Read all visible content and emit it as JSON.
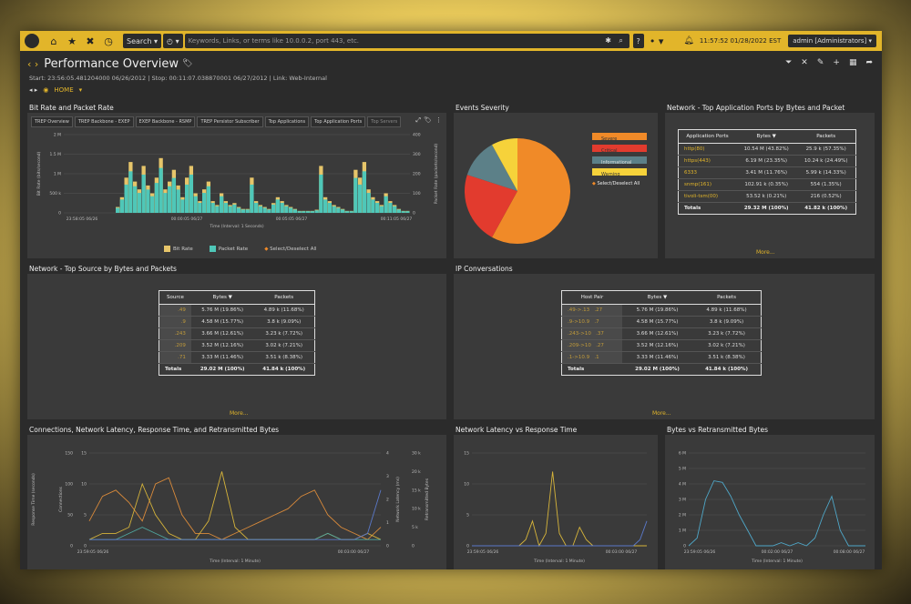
{
  "topbar": {
    "search_label": "Search",
    "search_placeholder": "Keywords, Links, or terms like 10.0.0.2, port 443, etc.",
    "help": "?",
    "clock": "11:57:52 01/28/2022 EST",
    "user": "admin [Administrators]"
  },
  "page": {
    "title": "Performance Overview",
    "subtitle": "Start: 23:56:05.481204000 06/26/2012 | Stop: 00:11:07.038870001 06/27/2012 | Link: Web-Internal",
    "home": "HOME"
  },
  "panels": {
    "bitrate": {
      "title": "Bit Rate and Packet Rate",
      "tabs": [
        "TREP Overview",
        "TREP Backbone - EXEP",
        "EXEP Backbone - RSMP",
        "TREP Persistor Subscriber",
        "Top Applications",
        "Top Application Ports",
        "Top Servers"
      ],
      "yleft_ticks": [
        "2 M",
        "1.5 M",
        "1 M",
        "500 k",
        "0"
      ],
      "yright_ticks": [
        "400",
        "300",
        "200",
        "100",
        "0"
      ],
      "yleft_label": "Bit Rate (bits/second)",
      "yright_label": "Packet Rate (packets/second)",
      "x_ticks": [
        "23:58:05 06/26",
        "00:00:05 06/27",
        "00:05:05 06/27",
        "00:11:05 06/27"
      ],
      "x_label": "Time (Interval: 1 Seconds)",
      "legend": [
        "Bit Rate",
        "Packet Rate",
        "Select/Deselect All"
      ]
    },
    "events": {
      "title": "Events Severity",
      "legend": [
        "Severe",
        "Critical",
        "Informational",
        "Warning",
        "Select/Deselect All"
      ]
    },
    "ports": {
      "title": "Network - Top Application Ports by Bytes and Packet",
      "headers": [
        "Application Ports",
        "Bytes ▼",
        "Packets"
      ],
      "rows": [
        [
          "http(80)",
          "10.54 M (43.82%)",
          "25.9 k (57.35%)"
        ],
        [
          "https(443)",
          "6.19 M (23.35%)",
          "10.24 k (24.49%)"
        ],
        [
          "6333",
          "3.41 M (11.76%)",
          "5.99 k (14.33%)"
        ],
        [
          "snmp(161)",
          "102.91 k (0.35%)",
          "554 (1.35%)"
        ],
        [
          "tivoli-tsm(00)",
          "53.52 k (0.21%)",
          "216 (0.52%)"
        ]
      ],
      "total": [
        "Totals",
        "29.32 M (100%)",
        "41.82 k (100%)"
      ],
      "more": "More..."
    },
    "sources": {
      "title": "Network - Top Source by Bytes and Packets",
      "headers": [
        "Source",
        "Bytes ▼",
        "Packets"
      ],
      "rows": [
        [
          ".49",
          "5.76 M (19.86%)",
          "4.89 k (11.68%)"
        ],
        [
          ".9",
          "4.58 M (15.77%)",
          "3.8 k (9.09%)"
        ],
        [
          ".243",
          "3.66 M (12.61%)",
          "3.23 k (7.72%)"
        ],
        [
          ".209",
          "3.52 M (12.16%)",
          "3.02 k (7.21%)"
        ],
        [
          ".71",
          "3.33 M (11.46%)",
          "3.51 k (8.38%)"
        ]
      ],
      "total": [
        "Totals",
        "29.02 M (100%)",
        "41.84 k (100%)"
      ],
      "more": "More..."
    },
    "conversations": {
      "title": "IP Conversations",
      "headers": [
        "Host Pair",
        "Bytes ▼",
        "Packets"
      ],
      "rows": [
        [
          ".49->.13",
          ".27",
          "5.76 M (19.86%)",
          "4.89 k (11.68%)"
        ],
        [
          ".9->10.9",
          ".7",
          "4.58 M (15.77%)",
          "3.8 k (9.09%)"
        ],
        [
          ".243->10",
          ".37",
          "3.66 M (12.61%)",
          "3.23 k (7.72%)"
        ],
        [
          ".209->10",
          ".27",
          "3.52 M (12.16%)",
          "3.02 k (7.21%)"
        ],
        [
          ".1->10.9",
          ".1",
          "3.33 M (11.46%)",
          "3.51 k (8.38%)"
        ]
      ],
      "total": [
        "Totals",
        "29.02 M (100%)",
        "41.84 k (100%)"
      ],
      "more": "More..."
    },
    "connections": {
      "title": "Connections, Network Latency, Response Time, and Retransmitted Bytes",
      "yleft_ticks": [
        "15",
        "10",
        "5",
        "0"
      ],
      "yleft2_ticks": [
        "150",
        "100",
        "50",
        "0"
      ],
      "yright_ticks": [
        "4",
        "3",
        "2",
        "1",
        "0"
      ],
      "yright2_ticks": [
        "30 k",
        "20 k",
        "15 k",
        "10 k",
        "5 k",
        "0"
      ],
      "yleft_label": "Response Time (seconds)",
      "yleft2_label": "Connections",
      "yright_label": "Network Latency (ms)",
      "yright2_label": "Retransmitted Bytes",
      "x_ticks": [
        "23:59:05 06/26",
        "00:03:00 06/27"
      ],
      "x_label": "Time (Interval: 1 Minute)"
    },
    "latency": {
      "title": "Network Latency vs Response Time",
      "y_ticks": [
        "15",
        "10",
        "5",
        "0"
      ],
      "x_ticks": [
        "23:59:05 06/26",
        "00:03:00 06/27"
      ],
      "x_label": "Time (Interval: 1 Minute)"
    },
    "retrans": {
      "title": "Bytes vs Retransmitted Bytes",
      "y_ticks": [
        "6 M",
        "5 M",
        "4 M",
        "3 M",
        "2 M",
        "1 M",
        "0"
      ],
      "x_ticks": [
        "23:59:05 06/26",
        "00:02:00 06/27",
        "00:08:00 06/27"
      ],
      "x_label": "Time (Interval: 1 Minute)"
    }
  },
  "colors": {
    "accent": "#e2b52a",
    "severe": "#f08a28",
    "critical": "#e23b2e",
    "informational": "#5c8088",
    "warning": "#f6d23a",
    "bitrate": "#e6c56a",
    "packetrate": "#4fc7b8"
  },
  "chart_data": [
    {
      "type": "area",
      "title": "Bit Rate and Packet Rate",
      "xlabel": "Time (Interval: 1 Seconds)",
      "ylabel": "Bit Rate (bits/second)",
      "ylim": [
        0,
        2000000
      ],
      "series": [
        {
          "name": "Bit Rate",
          "values": [
            0,
            0,
            0,
            0,
            0,
            0,
            0,
            0,
            0,
            0,
            0,
            0,
            150000,
            400000,
            900000,
            1300000,
            800000,
            600000,
            1200000,
            700000,
            500000,
            900000,
            1400000,
            600000,
            800000,
            1100000,
            700000,
            400000,
            900000,
            1200000,
            500000,
            300000,
            600000,
            800000,
            300000,
            200000,
            500000,
            300000,
            200000,
            250000,
            150000,
            100000,
            100000,
            900000,
            300000,
            200000,
            150000,
            100000,
            250000,
            400000,
            300000,
            200000,
            150000,
            100000,
            50000,
            50000,
            50000,
            50000,
            80000,
            1200000,
            400000,
            300000,
            200000,
            150000,
            100000,
            50000,
            50000,
            1100000,
            900000,
            1300000,
            600000,
            400000,
            300000,
            200000,
            500000,
            300000,
            200000,
            100000,
            50000,
            50000
          ]
        },
        {
          "name": "Packet Rate",
          "values": [
            0,
            0,
            0,
            0,
            0,
            0,
            0,
            0,
            0,
            0,
            0,
            0,
            30,
            80,
            170,
            250,
            160,
            120,
            230,
            140,
            100,
            180,
            270,
            120,
            160,
            210,
            140,
            80,
            170,
            230,
            100,
            60,
            120,
            160,
            60,
            40,
            100,
            60,
            40,
            50,
            30,
            20,
            20,
            170,
            60,
            40,
            30,
            20,
            50,
            80,
            60,
            40,
            30,
            20,
            10,
            10,
            10,
            10,
            15,
            230,
            80,
            60,
            40,
            30,
            20,
            10,
            10,
            210,
            170,
            250,
            120,
            80,
            60,
            40,
            100,
            60,
            40,
            20,
            10,
            10
          ]
        }
      ]
    },
    {
      "type": "pie",
      "title": "Events Severity",
      "categories": [
        "Severe",
        "Critical",
        "Informational",
        "Warning"
      ],
      "values": [
        58,
        22,
        12,
        8
      ]
    },
    {
      "type": "line",
      "title": "Connections, Network Latency, Response Time, and Retransmitted Bytes",
      "xlabel": "Time (Interval: 1 Minute)",
      "ylim": [
        0,
        15
      ],
      "series": [
        {
          "name": "series-orange",
          "values": [
            4,
            8,
            9,
            7,
            4,
            10,
            11,
            5,
            2,
            2,
            1,
            2,
            3,
            4,
            5,
            6,
            8,
            9,
            5,
            3,
            2,
            1,
            3
          ]
        },
        {
          "name": "series-yellow",
          "values": [
            1,
            2,
            2,
            3,
            10,
            5,
            2,
            1,
            1,
            4,
            12,
            3,
            1,
            1,
            1,
            1,
            1,
            1,
            2,
            1,
            1,
            2,
            1
          ]
        },
        {
          "name": "series-teal",
          "values": [
            1,
            1,
            1,
            2,
            3,
            2,
            1,
            1,
            1,
            1,
            1,
            1,
            1,
            1,
            1,
            1,
            1,
            1,
            2,
            1,
            1,
            1,
            1
          ]
        },
        {
          "name": "series-blue",
          "values": [
            1,
            1,
            1,
            1,
            1,
            1,
            1,
            1,
            1,
            1,
            1,
            1,
            1,
            1,
            1,
            1,
            1,
            1,
            1,
            1,
            1,
            2,
            9
          ]
        }
      ]
    },
    {
      "type": "line",
      "title": "Network Latency vs Response Time",
      "xlabel": "Time (Interval: 1 Minute)",
      "ylim": [
        0,
        15
      ],
      "series": [
        {
          "name": "series-yellow",
          "values": [
            0,
            0,
            0,
            0,
            0,
            0,
            0,
            0,
            1,
            4,
            0,
            2,
            12,
            2,
            0,
            0,
            3,
            1,
            0,
            0,
            0,
            0,
            0,
            0,
            0,
            0,
            0
          ]
        },
        {
          "name": "series-blue",
          "values": [
            0,
            0,
            0,
            0,
            0,
            0,
            0,
            0,
            0,
            0,
            0,
            0,
            0,
            0,
            0,
            0,
            0,
            0,
            0,
            0,
            0,
            0,
            0,
            0,
            0,
            1,
            4
          ]
        }
      ]
    },
    {
      "type": "line",
      "title": "Bytes vs Retransmitted Bytes",
      "xlabel": "Time (Interval: 1 Minute)",
      "ylim": [
        0,
        6000000
      ],
      "series": [
        {
          "name": "series-teal",
          "values": [
            0,
            500000,
            3000000,
            4200000,
            4100000,
            3200000,
            2000000,
            1000000,
            0,
            0,
            0,
            200000,
            0,
            200000,
            0,
            500000,
            2000000,
            3200000,
            1000000,
            0,
            0,
            0
          ]
        }
      ]
    }
  ]
}
